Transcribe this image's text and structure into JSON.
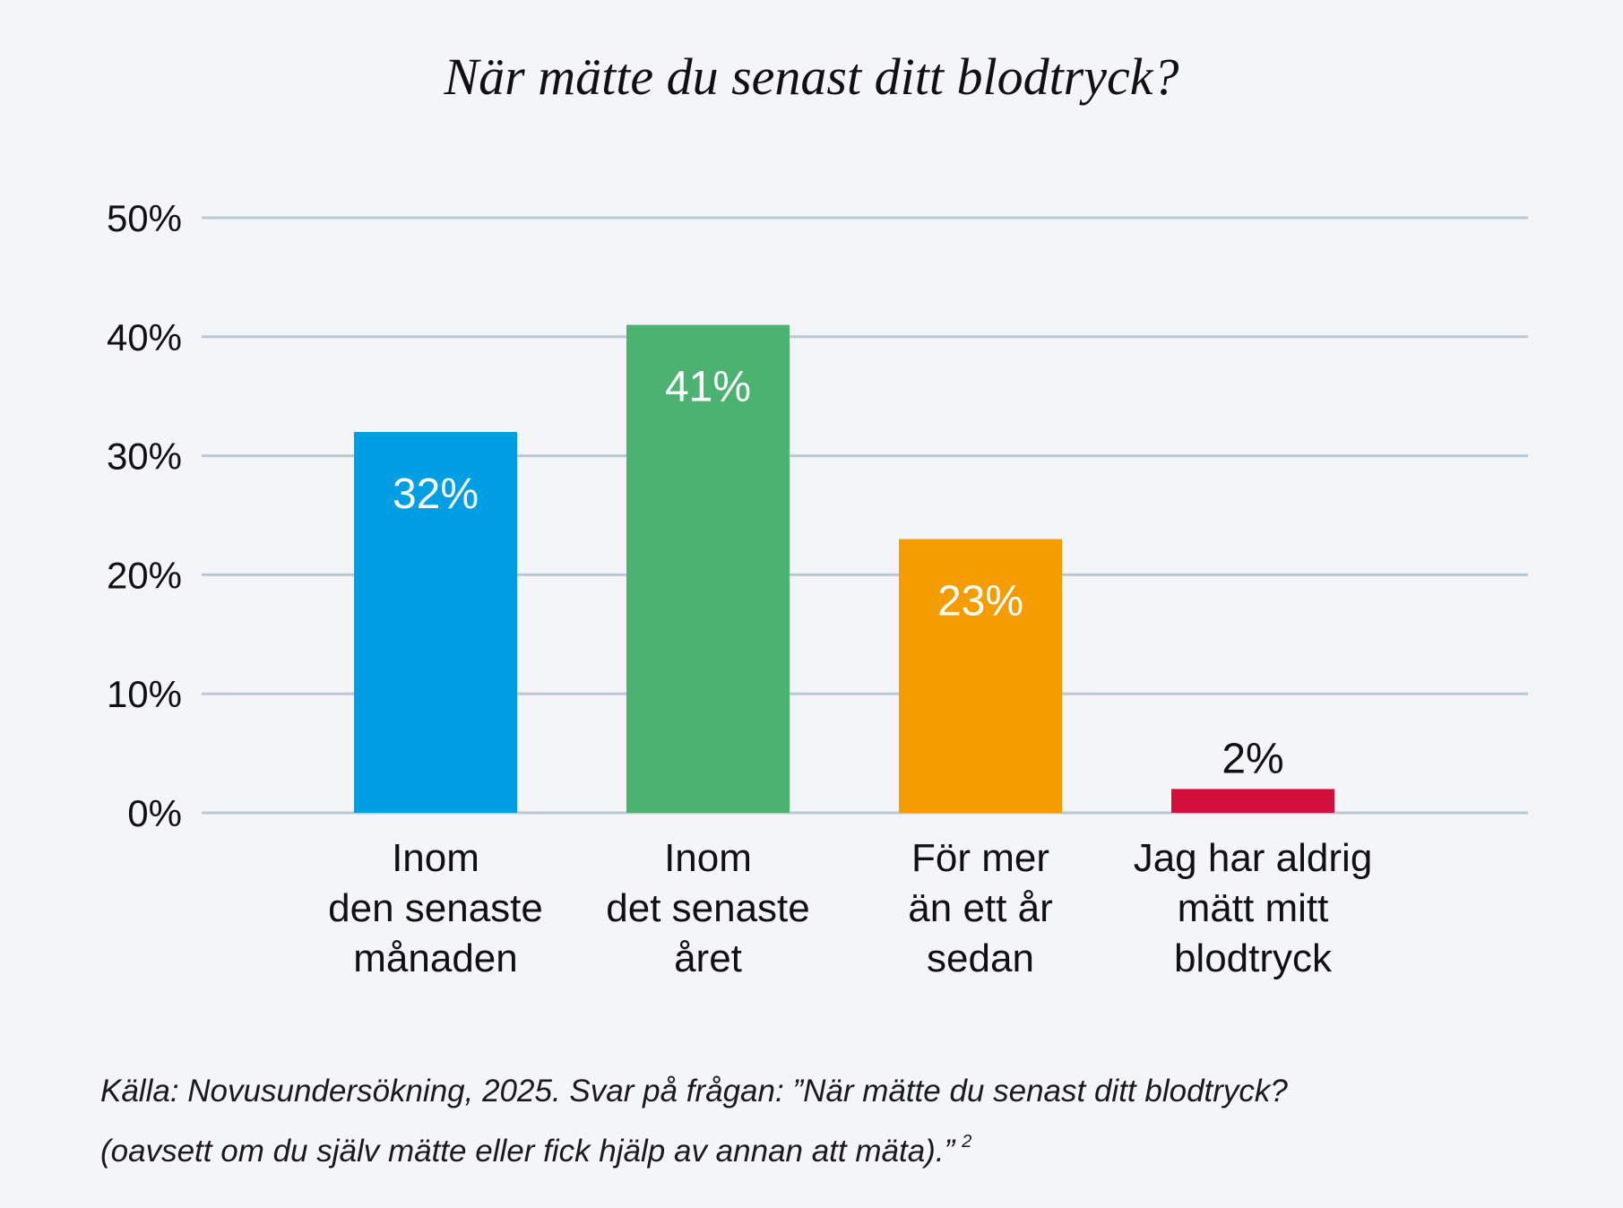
{
  "chart_data": {
    "type": "bar",
    "title": "När mätte du senast ditt blodtryck?",
    "categories": [
      [
        "Inom",
        "den senaste",
        "månaden"
      ],
      [
        "Inom",
        "det senaste",
        "året"
      ],
      [
        "För mer",
        "än ett år",
        "sedan"
      ],
      [
        "Jag har aldrig",
        "mätt mitt",
        "blodtryck"
      ]
    ],
    "values": [
      32,
      41,
      23,
      2
    ],
    "value_labels": [
      "32%",
      "41%",
      "23%",
      "2%"
    ],
    "colors": [
      "#009fe3",
      "#4bb272",
      "#f59c00",
      "#d0103a"
    ],
    "ylim": [
      0,
      50
    ],
    "yticks": [
      0,
      10,
      20,
      30,
      40,
      50
    ],
    "ytick_labels": [
      "0%",
      "10%",
      "20%",
      "30%",
      "40%",
      "50%"
    ],
    "grid": true,
    "grid_color": "#b9c8d2",
    "xlabel": "",
    "ylabel": ""
  },
  "source": {
    "line1": "Källa: Novusundersökning, 2025. Svar på frågan: ”När mätte du senast ditt blodtryck?",
    "line2": "(oavsett om du själv mätte eller fick hjälp av annan att mäta).”",
    "footnote": "2"
  }
}
